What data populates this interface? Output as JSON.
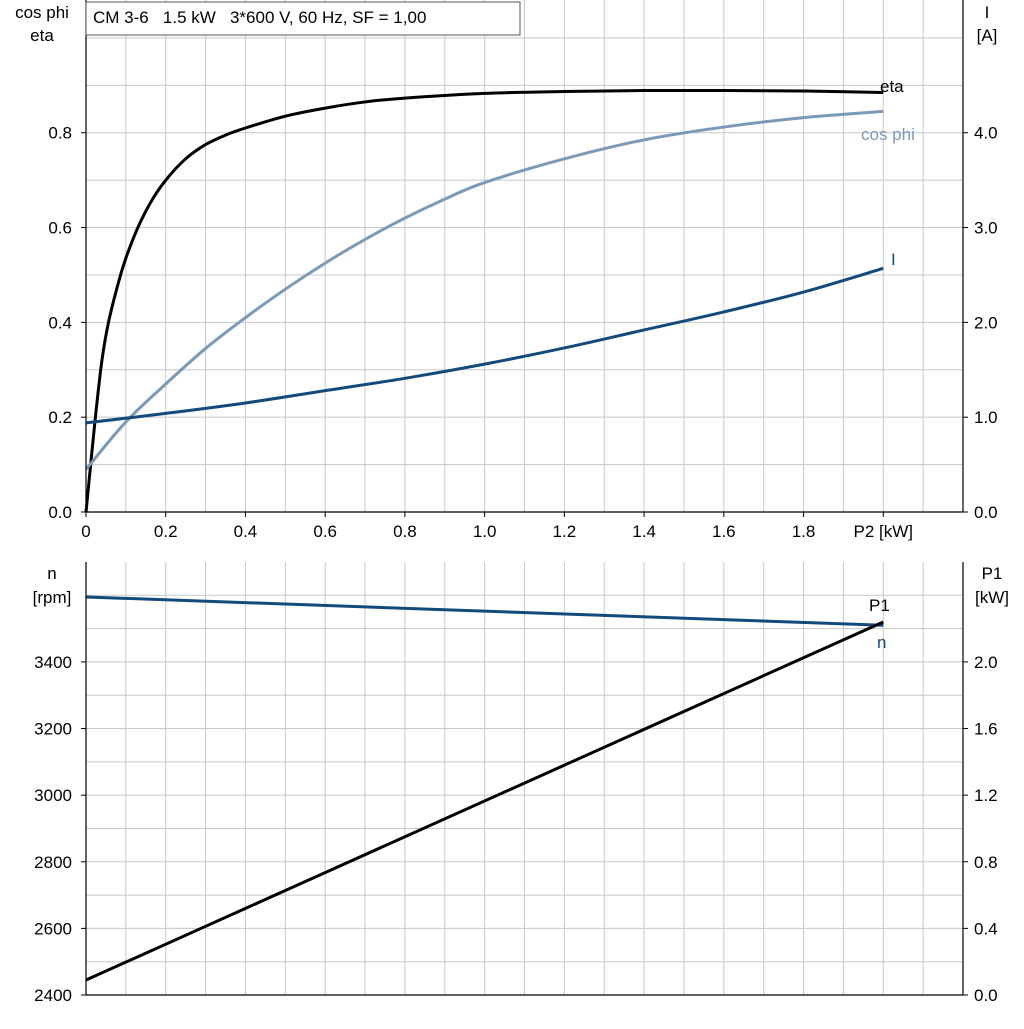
{
  "colors": {
    "eta": "#000000",
    "cos_phi": "#7a9ab8",
    "current": "#124a7c",
    "speed": "#124a7c",
    "p1": "#000000",
    "grid": "#c8c8c8",
    "axis": "#000000",
    "background": "#ffffff"
  },
  "chart_data": [
    {
      "type": "line",
      "title": "CM 3-6   1.5 kW   3*600 V, 60 Hz, SF = 1,00",
      "xlabel": "P2 [kW]",
      "ylabel_left": [
        "cos phi",
        "eta"
      ],
      "ylabel_right": [
        "I",
        "[A]"
      ],
      "xlim": [
        0,
        2.2
      ],
      "ylim_left": [
        0,
        1.08
      ],
      "ylim_right": [
        0,
        5.4
      ],
      "x_ticks": [
        0,
        0.1,
        0.2,
        0.3,
        0.4,
        0.5,
        0.6,
        0.7,
        0.8,
        0.9,
        1.0,
        1.1,
        1.2,
        1.3,
        1.4,
        1.5,
        1.6,
        1.7,
        1.8,
        1.9,
        2.0,
        2.1,
        2.2
      ],
      "x_tick_labels": [
        "0",
        "",
        "0.2",
        "",
        "0.4",
        "",
        "0.6",
        "",
        "0.8",
        "",
        "1.0",
        "",
        "1.2",
        "",
        "1.4",
        "",
        "1.6",
        "",
        "1.8",
        "",
        "P2 [kW]",
        "",
        ""
      ],
      "y_left_ticks": [
        0,
        0.1,
        0.2,
        0.3,
        0.4,
        0.5,
        0.6,
        0.7,
        0.8,
        0.9,
        1.0
      ],
      "y_left_tick_labels": [
        "0.0",
        "",
        "0.2",
        "",
        "0.4",
        "",
        "0.6",
        "",
        "0.8",
        "",
        ""
      ],
      "y_right_ticks": [
        0,
        1,
        2,
        3,
        4
      ],
      "y_right_tick_labels": [
        "0.0",
        "1.0",
        "2.0",
        "3.0",
        "4.0"
      ],
      "grid": true,
      "series": [
        {
          "name": "eta",
          "axis": "left",
          "color": "#000000",
          "x": [
            0,
            0.04,
            0.08,
            0.12,
            0.16,
            0.2,
            0.25,
            0.3,
            0.35,
            0.4,
            0.5,
            0.6,
            0.7,
            0.8,
            1.0,
            1.2,
            1.4,
            1.6,
            1.8,
            2.0
          ],
          "y": [
            0,
            0.32,
            0.48,
            0.58,
            0.65,
            0.7,
            0.745,
            0.775,
            0.795,
            0.81,
            0.835,
            0.852,
            0.865,
            0.873,
            0.883,
            0.887,
            0.889,
            0.889,
            0.888,
            0.885
          ]
        },
        {
          "name": "cos phi",
          "axis": "left",
          "color": "#7a9ab8",
          "x": [
            0,
            0.1,
            0.2,
            0.3,
            0.4,
            0.5,
            0.6,
            0.7,
            0.8,
            0.9,
            1.0,
            1.2,
            1.4,
            1.6,
            1.8,
            2.0
          ],
          "y": [
            0.09,
            0.19,
            0.27,
            0.345,
            0.41,
            0.47,
            0.525,
            0.575,
            0.62,
            0.66,
            0.695,
            0.745,
            0.785,
            0.812,
            0.832,
            0.845
          ]
        },
        {
          "name": "I",
          "axis": "right",
          "color": "#124a7c",
          "x": [
            0,
            0.2,
            0.4,
            0.6,
            0.8,
            1.0,
            1.2,
            1.4,
            1.6,
            1.8,
            2.0
          ],
          "y": [
            0.94,
            1.04,
            1.15,
            1.28,
            1.41,
            1.56,
            1.73,
            1.92,
            2.11,
            2.32,
            2.57
          ]
        }
      ]
    },
    {
      "type": "line",
      "xlabel": "",
      "ylabel_left": [
        "n",
        "[rpm]"
      ],
      "ylabel_right": [
        "P1",
        "[kW]"
      ],
      "xlim": [
        0,
        2.2
      ],
      "ylim_left": [
        2400,
        3700
      ],
      "ylim_right": [
        0,
        2.6
      ],
      "x_ticks": [
        0,
        0.1,
        0.2,
        0.3,
        0.4,
        0.5,
        0.6,
        0.7,
        0.8,
        0.9,
        1.0,
        1.1,
        1.2,
        1.3,
        1.4,
        1.5,
        1.6,
        1.7,
        1.8,
        1.9,
        2.0,
        2.1,
        2.2
      ],
      "y_left_ticks": [
        2400,
        2500,
        2600,
        2700,
        2800,
        2900,
        3000,
        3100,
        3200,
        3300,
        3400,
        3500,
        3600,
        3700
      ],
      "y_left_tick_labels": [
        "2400",
        "",
        "2600",
        "",
        "2800",
        "",
        "3000",
        "",
        "3200",
        "",
        "3400",
        "",
        "",
        ""
      ],
      "y_right_ticks": [
        0,
        0.2,
        0.4,
        0.6,
        0.8,
        1.0,
        1.2,
        1.4,
        1.6,
        1.8,
        2.0,
        2.2,
        2.4,
        2.6
      ],
      "y_right_tick_labels": [
        "0.0",
        "",
        "0.4",
        "",
        "0.8",
        "",
        "1.2",
        "",
        "1.6",
        "",
        "2.0",
        "",
        "",
        ""
      ],
      "grid": true,
      "series": [
        {
          "name": "n",
          "axis": "left",
          "color": "#124a7c",
          "x": [
            0,
            2.0
          ],
          "y": [
            3595,
            3510
          ]
        },
        {
          "name": "P1",
          "axis": "right",
          "color": "#000000",
          "x": [
            0,
            2.0
          ],
          "y": [
            0.09,
            2.24
          ]
        }
      ]
    }
  ]
}
